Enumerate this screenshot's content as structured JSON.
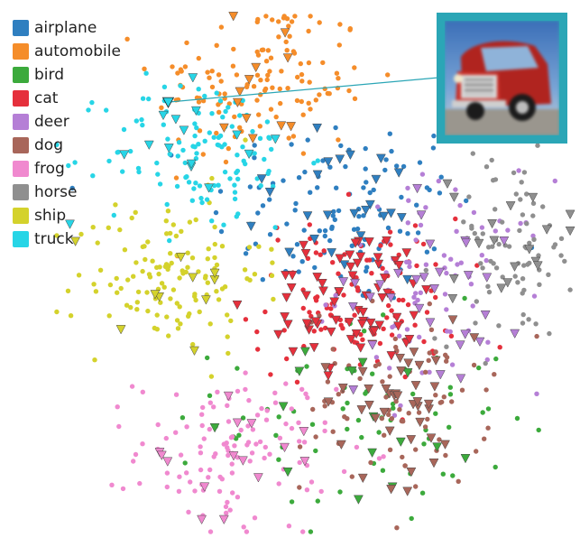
{
  "chart_data": {
    "type": "scatter",
    "title": "",
    "xlabel": "",
    "ylabel": "",
    "grid": false,
    "legend_position": "top-left",
    "point_encoding": "dots show all embedded points; triangles mark a highlighted subset",
    "inset": "blurred example image of a red truck connected by a line to its embedded point inside the truck cluster",
    "highlighted_point": {
      "series": "truck",
      "x": 2.2,
      "y": 8.3
    },
    "xlim": [
      0,
      10
    ],
    "ylim": [
      0,
      10
    ],
    "series": [
      {
        "name": "airplane",
        "color": "#2f7fc0",
        "center": [
          5.6,
          6.2
        ],
        "spread": [
          1.3,
          0.95
        ],
        "count_dots": 110,
        "count_triangles": 25
      },
      {
        "name": "automobile",
        "color": "#f58d2a",
        "center": [
          4.0,
          8.7
        ],
        "spread": [
          1.05,
          0.8
        ],
        "count_dots": 130,
        "count_triangles": 12
      },
      {
        "name": "bird",
        "color": "#3caa3c",
        "center": [
          6.0,
          2.2
        ],
        "spread": [
          1.4,
          1.0
        ],
        "count_dots": 70,
        "count_triangles": 15
      },
      {
        "name": "cat",
        "color": "#e5303c",
        "center": [
          5.8,
          4.5
        ],
        "spread": [
          1.0,
          0.8
        ],
        "count_dots": 110,
        "count_triangles": 70
      },
      {
        "name": "deer",
        "color": "#b57fd6",
        "center": [
          7.5,
          4.8
        ],
        "spread": [
          1.0,
          1.0
        ],
        "count_dots": 80,
        "count_triangles": 30
      },
      {
        "name": "dog",
        "color": "#a8665a",
        "center": [
          6.6,
          2.6
        ],
        "spread": [
          0.9,
          0.9
        ],
        "count_dots": 80,
        "count_triangles": 40
      },
      {
        "name": "frog",
        "color": "#f089cf",
        "center": [
          3.5,
          1.6
        ],
        "spread": [
          0.95,
          0.75
        ],
        "count_dots": 120,
        "count_triangles": 15
      },
      {
        "name": "horse",
        "color": "#8f8f8f",
        "center": [
          8.8,
          5.5
        ],
        "spread": [
          0.7,
          0.9
        ],
        "count_dots": 80,
        "count_triangles": 18
      },
      {
        "name": "ship",
        "color": "#d4d22c",
        "center": [
          2.2,
          5.0
        ],
        "spread": [
          0.9,
          0.75
        ],
        "count_dots": 130,
        "count_triangles": 10
      },
      {
        "name": "truck",
        "color": "#27d5e6",
        "center": [
          2.9,
          7.3
        ],
        "spread": [
          0.95,
          0.75
        ],
        "count_dots": 120,
        "count_triangles": 15
      }
    ]
  }
}
